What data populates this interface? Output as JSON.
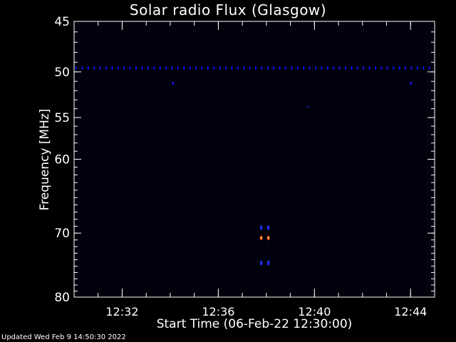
{
  "chart_data": {
    "type": "heatmap",
    "title": "Solar radio Flux (Glasgow)",
    "xlabel": "Start Time (06-Feb-22 12:30:00)",
    "ylabel": "Frequency [MHz]",
    "x_ticks": [
      "12:32",
      "12:36",
      "12:40",
      "12:44"
    ],
    "x_range_minutes": [
      0,
      15
    ],
    "y_ticks": [
      45,
      50,
      55,
      60,
      70,
      80
    ],
    "ylim": [
      45,
      80
    ],
    "y_scale": "log",
    "background_color": "#000000",
    "plot_background": "#00000a",
    "axis_color": "#ffffff",
    "features": [
      {
        "kind": "horizontal-band",
        "freq_mhz": 49.6,
        "color": "#1010ff"
      },
      {
        "kind": "burst",
        "time_min": 7.95,
        "freq_mhz": 69.2,
        "color": "#2030ff"
      },
      {
        "kind": "burst",
        "time_min": 7.95,
        "freq_mhz": 70.7,
        "color": "#ff3010"
      },
      {
        "kind": "burst",
        "time_min": 7.95,
        "freq_mhz": 74.5,
        "color": "#2030ff"
      },
      {
        "kind": "speck",
        "time_min": 4.1,
        "freq_mhz": 51.2,
        "color": "#1010ff"
      },
      {
        "kind": "speck",
        "time_min": 14.0,
        "freq_mhz": 51.2,
        "color": "#1010ff"
      },
      {
        "kind": "speck",
        "time_min": 9.7,
        "freq_mhz": 53.8,
        "color": "#101080"
      }
    ],
    "footer": "Updated Wed Feb  9 14:50:30 2022"
  }
}
